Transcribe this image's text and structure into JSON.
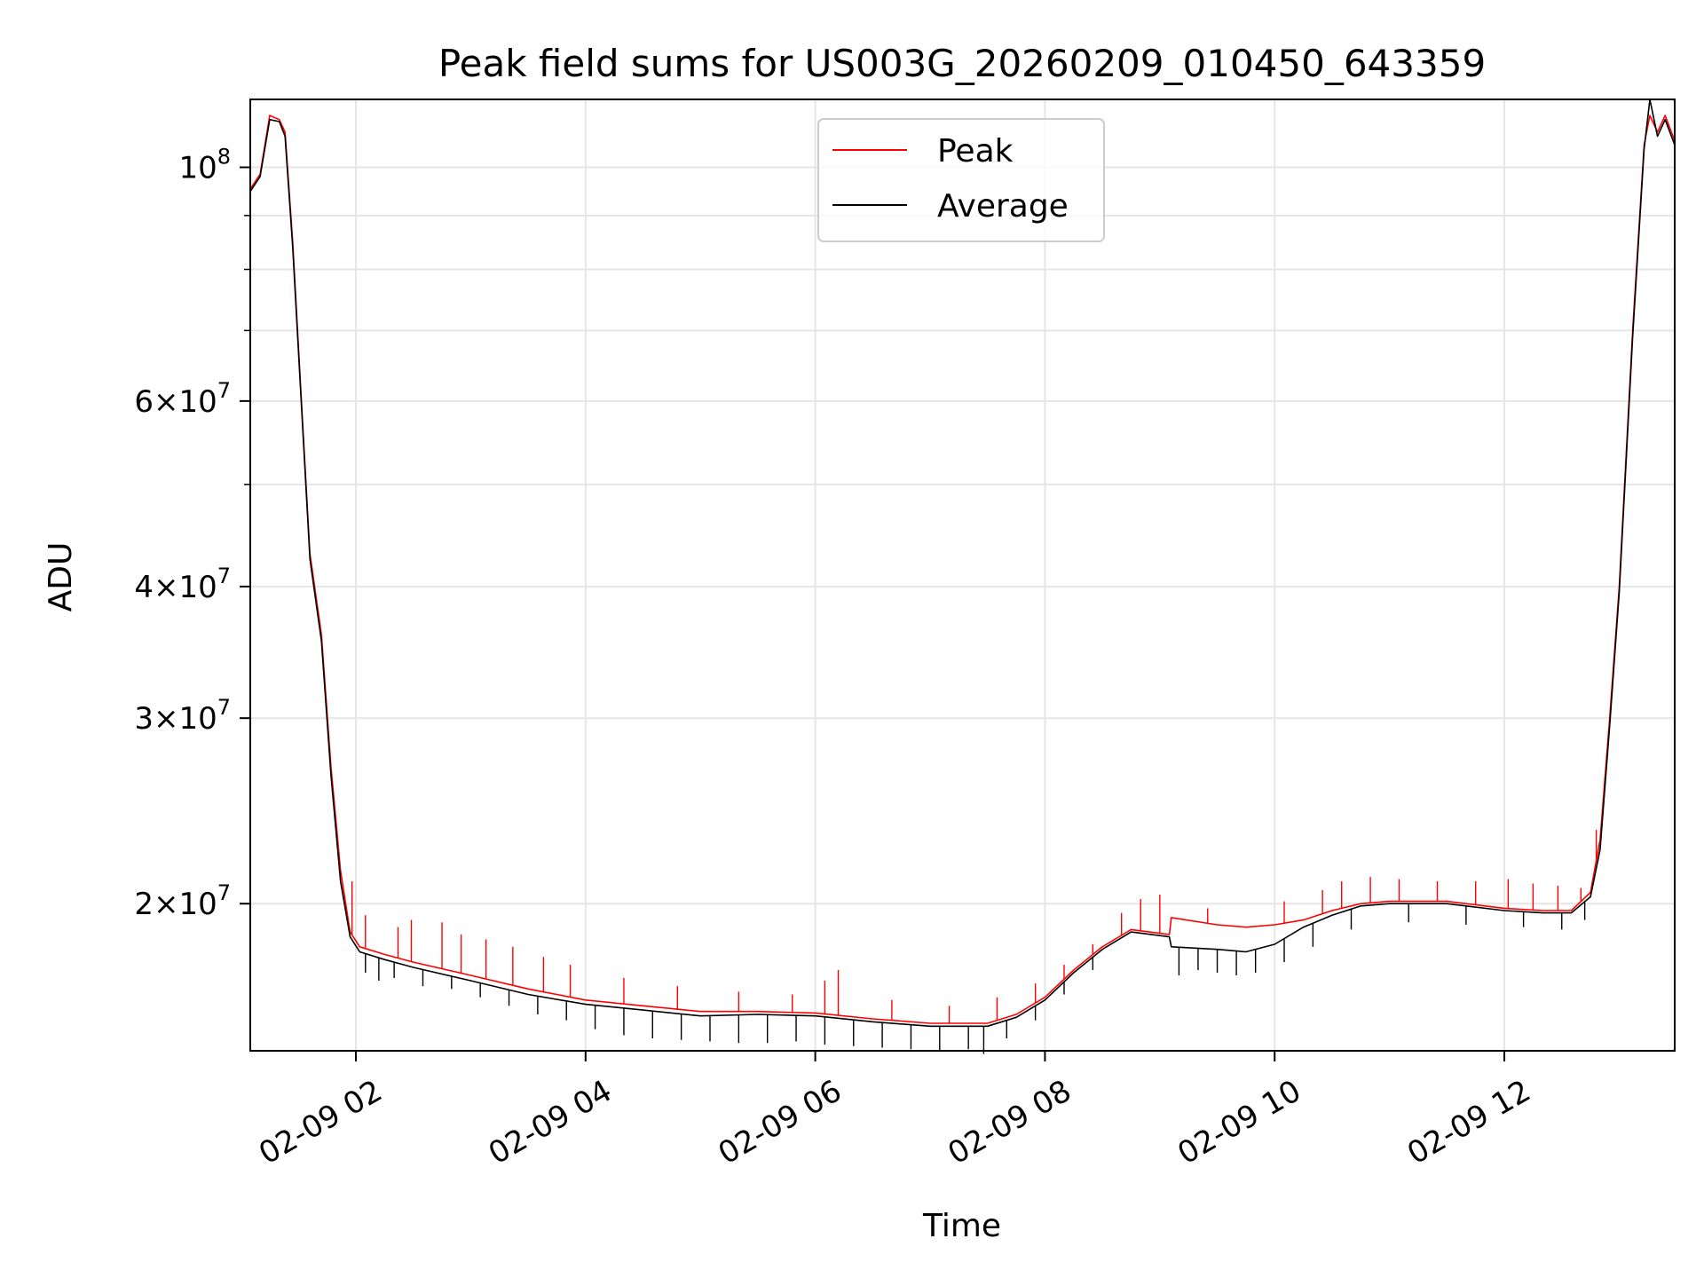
{
  "chart_data": {
    "type": "line",
    "title": "Peak field sums for US003G_20260209_010450_643359",
    "xlabel": "Time",
    "ylabel": "ADU",
    "yscale": "log",
    "grid": true,
    "legend_position": "upper center",
    "xlim": [
      "2026-02-09T01:04:50",
      "2026-02-09T13:29:00"
    ],
    "ylim": [
      14500000,
      116000000
    ],
    "x_ticks": [
      {
        "value": "2026-02-09T02:00",
        "label": "02-09 02"
      },
      {
        "value": "2026-02-09T04:00",
        "label": "02-09 04"
      },
      {
        "value": "2026-02-09T06:00",
        "label": "02-09 06"
      },
      {
        "value": "2026-02-09T08:00",
        "label": "02-09 08"
      },
      {
        "value": "2026-02-09T10:00",
        "label": "02-09 10"
      },
      {
        "value": "2026-02-09T12:00",
        "label": "02-09 12"
      }
    ],
    "y_major_ticks": [
      {
        "value": 20000000,
        "mant": "2",
        "exp": "7"
      },
      {
        "value": 30000000,
        "mant": "3",
        "exp": "7"
      },
      {
        "value": 40000000,
        "mant": "4",
        "exp": "7"
      },
      {
        "value": 60000000,
        "mant": "6",
        "exp": "7"
      },
      {
        "value": 100000000,
        "mant": "",
        "exp": "8"
      }
    ],
    "y_minor_ticks": [
      50000000,
      70000000,
      80000000,
      90000000
    ],
    "series": [
      {
        "name": "Peak",
        "color": "#ff0000",
        "points": [
          [
            "01:05",
            95500000
          ],
          [
            "01:10",
            98500000
          ],
          [
            "01:15",
            112000000
          ],
          [
            "01:20",
            111000000
          ],
          [
            "01:23",
            108000000
          ],
          [
            "01:27",
            85000000
          ],
          [
            "01:32",
            58000000
          ],
          [
            "01:36",
            43000000
          ],
          [
            "01:42",
            36000000
          ],
          [
            "01:47",
            27000000
          ],
          [
            "01:52",
            21500000
          ],
          [
            "01:57",
            18800000
          ],
          [
            "02:02",
            18200000
          ],
          [
            "02:15",
            17900000
          ],
          [
            "02:30",
            17600000
          ],
          [
            "03:00",
            17100000
          ],
          [
            "03:30",
            16600000
          ],
          [
            "04:00",
            16200000
          ],
          [
            "04:30",
            16000000
          ],
          [
            "05:00",
            15800000
          ],
          [
            "05:30",
            15800000
          ],
          [
            "06:00",
            15750000
          ],
          [
            "06:30",
            15550000
          ],
          [
            "07:00",
            15400000
          ],
          [
            "07:30",
            15400000
          ],
          [
            "07:45",
            15700000
          ],
          [
            "08:00",
            16300000
          ],
          [
            "08:15",
            17300000
          ],
          [
            "08:30",
            18200000
          ],
          [
            "08:45",
            18900000
          ],
          [
            "09:05",
            18700000
          ],
          [
            "09:06",
            19400000
          ],
          [
            "09:30",
            19100000
          ],
          [
            "09:45",
            19000000
          ],
          [
            "10:00",
            19100000
          ],
          [
            "10:15",
            19300000
          ],
          [
            "10:30",
            19700000
          ],
          [
            "10:45",
            20000000
          ],
          [
            "11:00",
            20100000
          ],
          [
            "11:30",
            20100000
          ],
          [
            "12:00",
            19800000
          ],
          [
            "12:20",
            19700000
          ],
          [
            "12:35",
            19700000
          ],
          [
            "12:45",
            20500000
          ],
          [
            "12:50",
            23000000
          ],
          [
            "12:55",
            30000000
          ],
          [
            "13:00",
            40000000
          ],
          [
            "13:07",
            70000000
          ],
          [
            "13:13",
            105000000
          ],
          [
            "13:16",
            112000000
          ],
          [
            "13:20",
            108000000
          ],
          [
            "13:24",
            112000000
          ],
          [
            "13:29",
            106000000
          ]
        ],
        "spikes": [
          [
            "01:58",
            21000000
          ],
          [
            "02:05",
            19500000
          ],
          [
            "02:22",
            19000000
          ],
          [
            "02:29",
            19300000
          ],
          [
            "02:45",
            19200000
          ],
          [
            "02:55",
            18700000
          ],
          [
            "03:08",
            18500000
          ],
          [
            "03:22",
            18200000
          ],
          [
            "03:38",
            17800000
          ],
          [
            "03:52",
            17500000
          ],
          [
            "04:20",
            17000000
          ],
          [
            "04:48",
            16700000
          ],
          [
            "05:20",
            16500000
          ],
          [
            "05:48",
            16400000
          ],
          [
            "06:05",
            16900000
          ],
          [
            "06:12",
            17300000
          ],
          [
            "06:40",
            16200000
          ],
          [
            "07:10",
            16000000
          ],
          [
            "07:35",
            16300000
          ],
          [
            "07:55",
            16800000
          ],
          [
            "08:10",
            17500000
          ],
          [
            "08:25",
            18300000
          ],
          [
            "08:40",
            19600000
          ],
          [
            "08:50",
            20200000
          ],
          [
            "09:00",
            20400000
          ],
          [
            "09:25",
            19800000
          ],
          [
            "10:05",
            20100000
          ],
          [
            "10:25",
            20600000
          ],
          [
            "10:35",
            21000000
          ],
          [
            "10:50",
            21200000
          ],
          [
            "11:05",
            21100000
          ],
          [
            "11:25",
            21000000
          ],
          [
            "11:45",
            21000000
          ],
          [
            "12:02",
            21100000
          ],
          [
            "12:15",
            20900000
          ],
          [
            "12:28",
            20800000
          ],
          [
            "12:40",
            20700000
          ],
          [
            "12:48",
            23500000
          ]
        ]
      },
      {
        "name": "Average",
        "color": "#000000",
        "points": [
          [
            "01:05",
            95000000
          ],
          [
            "01:10",
            98000000
          ],
          [
            "01:15",
            111000000
          ],
          [
            "01:20",
            110500000
          ],
          [
            "01:23",
            107000000
          ],
          [
            "01:27",
            84000000
          ],
          [
            "01:32",
            57500000
          ],
          [
            "01:36",
            42500000
          ],
          [
            "01:42",
            35500000
          ],
          [
            "01:47",
            26500000
          ],
          [
            "01:52",
            21000000
          ],
          [
            "01:57",
            18600000
          ],
          [
            "02:02",
            18000000
          ],
          [
            "02:15",
            17700000
          ],
          [
            "02:30",
            17400000
          ],
          [
            "03:00",
            16900000
          ],
          [
            "03:30",
            16400000
          ],
          [
            "04:00",
            16050000
          ],
          [
            "04:30",
            15850000
          ],
          [
            "05:00",
            15650000
          ],
          [
            "05:30",
            15700000
          ],
          [
            "06:00",
            15650000
          ],
          [
            "06:30",
            15450000
          ],
          [
            "07:00",
            15300000
          ],
          [
            "07:30",
            15300000
          ],
          [
            "07:45",
            15600000
          ],
          [
            "08:00",
            16200000
          ],
          [
            "08:15",
            17200000
          ],
          [
            "08:30",
            18100000
          ],
          [
            "08:45",
            18800000
          ],
          [
            "09:05",
            18600000
          ],
          [
            "09:06",
            18200000
          ],
          [
            "09:30",
            18100000
          ],
          [
            "09:45",
            18000000
          ],
          [
            "10:00",
            18300000
          ],
          [
            "10:15",
            19000000
          ],
          [
            "10:30",
            19500000
          ],
          [
            "10:45",
            19900000
          ],
          [
            "11:00",
            20000000
          ],
          [
            "11:30",
            20000000
          ],
          [
            "12:00",
            19700000
          ],
          [
            "12:20",
            19600000
          ],
          [
            "12:35",
            19600000
          ],
          [
            "12:45",
            20300000
          ],
          [
            "12:50",
            22500000
          ],
          [
            "12:55",
            29500000
          ],
          [
            "13:00",
            39500000
          ],
          [
            "13:07",
            69000000
          ],
          [
            "13:13",
            104000000
          ],
          [
            "13:16",
            116000000
          ],
          [
            "13:20",
            107000000
          ],
          [
            "13:24",
            111000000
          ],
          [
            "13:29",
            105000000
          ]
        ],
        "dips": [
          [
            "02:05",
            17200000
          ],
          [
            "02:12",
            16900000
          ],
          [
            "02:20",
            17000000
          ],
          [
            "02:35",
            16700000
          ],
          [
            "02:50",
            16600000
          ],
          [
            "03:05",
            16300000
          ],
          [
            "03:20",
            16000000
          ],
          [
            "03:35",
            15700000
          ],
          [
            "03:50",
            15500000
          ],
          [
            "04:05",
            15200000
          ],
          [
            "04:20",
            15000000
          ],
          [
            "04:35",
            14900000
          ],
          [
            "04:50",
            14850000
          ],
          [
            "05:05",
            14800000
          ],
          [
            "05:20",
            14750000
          ],
          [
            "05:35",
            14750000
          ],
          [
            "05:50",
            14800000
          ],
          [
            "06:05",
            14700000
          ],
          [
            "06:20",
            14650000
          ],
          [
            "06:35",
            14600000
          ],
          [
            "06:50",
            14550000
          ],
          [
            "07:05",
            14500000
          ],
          [
            "07:20",
            14550000
          ],
          [
            "07:28",
            14400000
          ],
          [
            "07:40",
            14900000
          ],
          [
            "07:55",
            15500000
          ],
          [
            "08:10",
            16400000
          ],
          [
            "08:25",
            17300000
          ],
          [
            "09:10",
            17100000
          ],
          [
            "09:20",
            17300000
          ],
          [
            "09:30",
            17200000
          ],
          [
            "09:40",
            17100000
          ],
          [
            "09:50",
            17200000
          ],
          [
            "10:05",
            17600000
          ],
          [
            "10:20",
            18200000
          ],
          [
            "10:40",
            18900000
          ],
          [
            "11:10",
            19200000
          ],
          [
            "11:40",
            19100000
          ],
          [
            "12:10",
            19000000
          ],
          [
            "12:30",
            18900000
          ],
          [
            "12:42",
            19300000
          ]
        ]
      }
    ]
  }
}
